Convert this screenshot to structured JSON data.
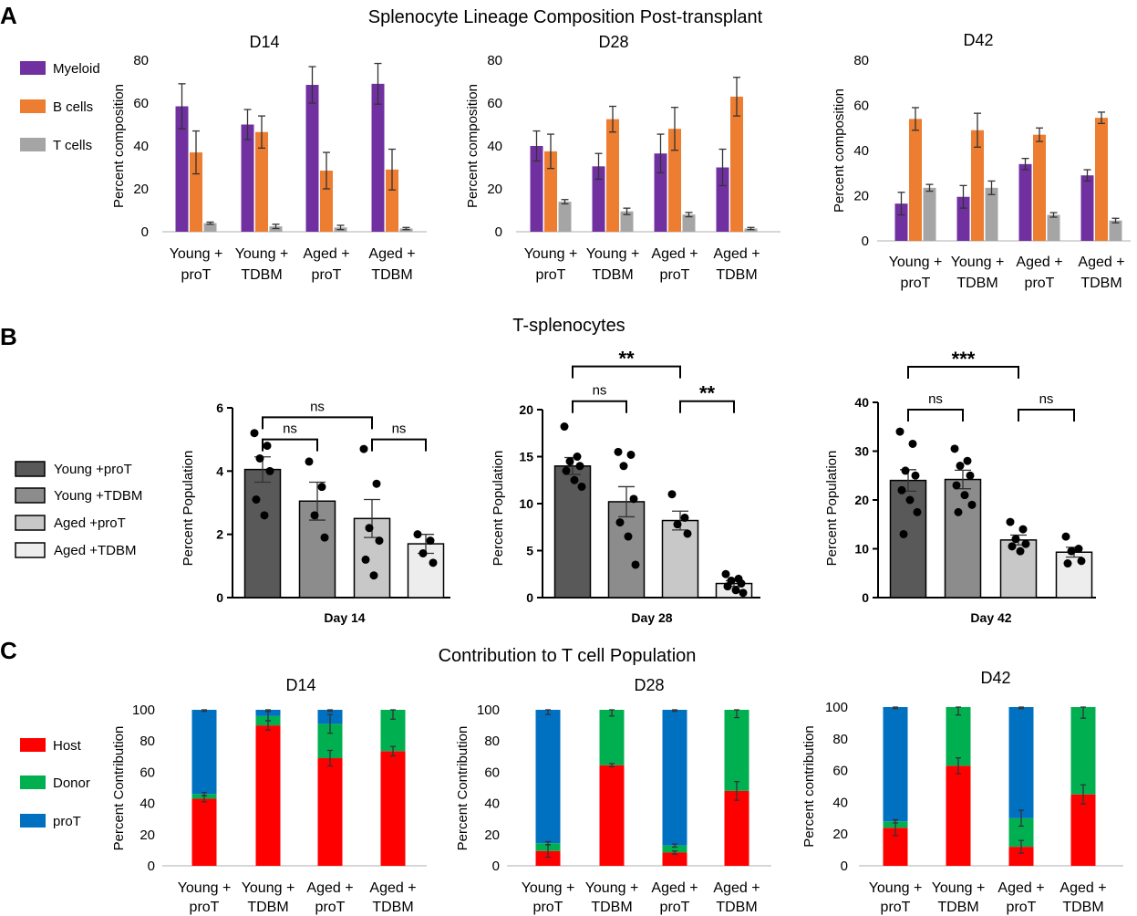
{
  "panels": [
    {
      "letter": "A",
      "title": "Splenocyte Lineage Composition Post-transplant"
    },
    {
      "letter": "B",
      "title": "T-splenocytes"
    },
    {
      "letter": "C",
      "title": "Contribution to T cell Population"
    }
  ],
  "legend_a": [
    {
      "label": "Myeloid",
      "color": "#7030A0"
    },
    {
      "label": "B cells",
      "color": "#ED7D31"
    },
    {
      "label": "T cells",
      "color": "#A5A5A5"
    }
  ],
  "legend_b": [
    {
      "label": "Young +proT",
      "color": "#595959"
    },
    {
      "label": "Young +TDBM",
      "color": "#8C8C8C"
    },
    {
      "label": "Aged +proT",
      "color": "#C8C8C8"
    },
    {
      "label": "Aged +TDBM",
      "color": "#EDEDED"
    }
  ],
  "legend_c": [
    {
      "label": "Host",
      "color": "#FF0000"
    },
    {
      "label": "Donor",
      "color": "#00B050"
    },
    {
      "label": "proT",
      "color": "#0070C0"
    }
  ],
  "chart_data": [
    {
      "id": "A1",
      "type": "bar",
      "title": "D14",
      "ylabel": "Percent composition",
      "ylim": [
        0,
        80
      ],
      "yticks": [
        0,
        20,
        40,
        60,
        80
      ],
      "categories": [
        [
          "Young +",
          "proT"
        ],
        [
          "Young +",
          "TDBM"
        ],
        [
          "Aged +",
          "proT"
        ],
        [
          "Aged +",
          "TDBM"
        ]
      ],
      "series": [
        {
          "name": "Myeloid",
          "values": [
            58.5,
            50,
            68.5,
            69
          ],
          "errors": [
            10.5,
            7,
            8.5,
            9.5
          ]
        },
        {
          "name": "B cells",
          "values": [
            37,
            46.5,
            28.5,
            29
          ],
          "errors": [
            10,
            7.5,
            8.5,
            9.5
          ]
        },
        {
          "name": "T cells",
          "values": [
            4,
            2.5,
            2,
            1.5
          ],
          "errors": [
            0.5,
            1,
            1,
            0.5
          ]
        }
      ]
    },
    {
      "id": "A2",
      "type": "bar",
      "title": "D28",
      "ylabel": "Percent composition",
      "ylim": [
        0,
        80
      ],
      "yticks": [
        0,
        20,
        40,
        60,
        80
      ],
      "categories": [
        [
          "Young +",
          "proT"
        ],
        [
          "Young +",
          "TDBM"
        ],
        [
          "Aged +",
          "proT"
        ],
        [
          "Aged +",
          "TDBM"
        ]
      ],
      "series": [
        {
          "name": "Myeloid",
          "values": [
            40,
            30.5,
            36.5,
            30
          ],
          "errors": [
            7,
            6,
            9,
            8.5
          ]
        },
        {
          "name": "B cells",
          "values": [
            37.5,
            52.5,
            48,
            63
          ],
          "errors": [
            8,
            6,
            10,
            9
          ]
        },
        {
          "name": "T cells",
          "values": [
            14,
            9.5,
            8,
            1.5
          ],
          "errors": [
            1,
            1.5,
            1,
            0.5
          ]
        }
      ]
    },
    {
      "id": "A3",
      "type": "bar",
      "title": "D42",
      "ylabel": "Percent composition",
      "ylim": [
        0,
        80
      ],
      "yticks": [
        0,
        20,
        40,
        60,
        80
      ],
      "categories": [
        [
          "Young +",
          "proT"
        ],
        [
          "Young +",
          "TDBM"
        ],
        [
          "Aged +",
          "proT"
        ],
        [
          "Aged +",
          "TDBM"
        ]
      ],
      "series": [
        {
          "name": "Myeloid",
          "values": [
            16.5,
            19.5,
            34,
            29
          ],
          "errors": [
            5,
            5,
            2.5,
            2.5
          ]
        },
        {
          "name": "B cells",
          "values": [
            54,
            49,
            47,
            54.5
          ],
          "errors": [
            5,
            7.5,
            3,
            2.5
          ]
        },
        {
          "name": "T cells",
          "values": [
            23.5,
            23.5,
            11.5,
            9
          ],
          "errors": [
            1.5,
            3,
            1,
            1
          ]
        }
      ]
    },
    {
      "id": "B1",
      "type": "bar",
      "title": "",
      "xlabel": "Day 14",
      "ylabel": "Percent Population",
      "ylim": [
        0,
        6
      ],
      "yticks": [
        0,
        2,
        4,
        6
      ],
      "categories": [
        "Young +proT",
        "Young +TDBM",
        "Aged +proT",
        "Aged +TDBM"
      ],
      "values": [
        4.05,
        3.05,
        2.5,
        1.7
      ],
      "errors": [
        0.4,
        0.6,
        0.6,
        0.3
      ],
      "points": [
        [
          5.2,
          4.8,
          4.4,
          4.0,
          3.1,
          2.6
        ],
        [
          4.3,
          3.5,
          2.6,
          1.9
        ],
        [
          4.7,
          3.6,
          2.2,
          1.8,
          1.2,
          0.7
        ],
        [
          2.0,
          1.8,
          1.4,
          1.1
        ]
      ],
      "brackets": [
        {
          "from": 0,
          "to": 2,
          "label": "ns",
          "y": 5.7
        },
        {
          "from": 0,
          "to": 1,
          "label": "ns",
          "y": 5.0
        },
        {
          "from": 2,
          "to": 3,
          "label": "ns",
          "y": 5.0
        }
      ]
    },
    {
      "id": "B2",
      "type": "bar",
      "title": "",
      "xlabel": "Day 28",
      "ylabel": "Percent Population",
      "ylim": [
        0,
        20
      ],
      "yticks": [
        0,
        5,
        10,
        15,
        20
      ],
      "categories": [
        "Young +proT",
        "Young +TDBM",
        "Aged +proT",
        "Aged +TDBM"
      ],
      "values": [
        14,
        10.2,
        8.2,
        1.5
      ],
      "errors": [
        0.9,
        1.6,
        1.0,
        0.3
      ],
      "points": [
        [
          18.2,
          15.0,
          14.5,
          14.0,
          13.5,
          12.5,
          11.8
        ],
        [
          15.5,
          15.2,
          14.0,
          10.5,
          8.0,
          6.5,
          3.5
        ],
        [
          11.0,
          8.5,
          7.8,
          6.8
        ],
        [
          2.5,
          2.0,
          1.8,
          1.5,
          1.2,
          0.8,
          0.5
        ]
      ],
      "brackets": [
        {
          "from": 0,
          "to": 2,
          "label": "**",
          "y": 24.6
        },
        {
          "from": 0,
          "to": 1,
          "label": "ns",
          "y": 20.9
        },
        {
          "from": 2,
          "to": 3,
          "label": "**",
          "y": 20.9
        }
      ]
    },
    {
      "id": "B3",
      "type": "bar",
      "title": "",
      "xlabel": "Day 42",
      "ylabel": "Percent Population",
      "ylim": [
        0,
        40
      ],
      "yticks": [
        0,
        10,
        20,
        30,
        40
      ],
      "categories": [
        "Young +proT",
        "Young +TDBM",
        "Aged +proT",
        "Aged +TDBM"
      ],
      "values": [
        24,
        24.2,
        11.8,
        9.3
      ],
      "errors": [
        2.2,
        1.9,
        1.0,
        1.0
      ],
      "points": [
        [
          34.0,
          31.5,
          26.0,
          25.0,
          22.0,
          20.0,
          17.5,
          13.0
        ],
        [
          30.5,
          28.0,
          27.0,
          25.0,
          23.0,
          21.0,
          19.0,
          17.5
        ],
        [
          15.5,
          14.0,
          12.0,
          11.0,
          10.5,
          9.5
        ],
        [
          12.5,
          10.0,
          9.5,
          7.5,
          7.0
        ]
      ],
      "brackets": [
        {
          "from": 0,
          "to": 2,
          "label": "***",
          "y": 47.3
        },
        {
          "from": 0,
          "to": 1,
          "label": "ns",
          "y": 38.5
        },
        {
          "from": 2,
          "to": 3,
          "label": "ns",
          "y": 38.5
        }
      ]
    },
    {
      "id": "C1",
      "type": "bar",
      "stacked": true,
      "title": "D14",
      "ylabel": "Percent Contribution",
      "ylim": [
        0,
        100
      ],
      "yticks": [
        0,
        20,
        40,
        60,
        80,
        100
      ],
      "categories": [
        [
          "Young +",
          "proT"
        ],
        [
          "Young +",
          "TDBM"
        ],
        [
          "Aged +",
          "proT"
        ],
        [
          "Aged +",
          "TDBM"
        ]
      ],
      "series": [
        {
          "name": "Host",
          "values": [
            43,
            90,
            69,
            73.5
          ],
          "errors": [
            2,
            3,
            5,
            3
          ]
        },
        {
          "name": "Donor",
          "values": [
            3,
            6,
            22,
            26.5
          ],
          "errors": [
            1,
            3,
            6,
            6
          ]
        },
        {
          "name": "proT",
          "values": [
            54,
            4,
            9,
            0
          ],
          "errors": [
            1,
            1,
            1,
            0
          ]
        }
      ]
    },
    {
      "id": "C2",
      "type": "bar",
      "stacked": true,
      "title": "D28",
      "ylabel": "Percent Contribution",
      "ylim": [
        0,
        100
      ],
      "yticks": [
        0,
        20,
        40,
        60,
        80,
        100
      ],
      "categories": [
        [
          "Young +",
          "proT"
        ],
        [
          "Young +",
          "TDBM"
        ],
        [
          "Aged +",
          "proT"
        ],
        [
          "Aged +",
          "TDBM"
        ]
      ],
      "series": [
        {
          "name": "Host",
          "values": [
            9.5,
            64.5,
            8.5,
            48
          ],
          "errors": [
            4,
            1,
            1,
            6
          ]
        },
        {
          "name": "Donor",
          "values": [
            5,
            35.5,
            4.5,
            52
          ],
          "errors": [
            1,
            4,
            1,
            5
          ]
        },
        {
          "name": "proT",
          "values": [
            85.5,
            0,
            87,
            0
          ],
          "errors": [
            3,
            0,
            1,
            0
          ]
        }
      ]
    },
    {
      "id": "C3",
      "type": "bar",
      "stacked": true,
      "title": "D42",
      "ylabel": "Percent contribution",
      "ylim": [
        0,
        100
      ],
      "yticks": [
        0,
        20,
        40,
        60,
        80,
        100
      ],
      "categories": [
        [
          "Young +",
          "proT"
        ],
        [
          "Young +",
          "TDBM"
        ],
        [
          "Aged +",
          "proT"
        ],
        [
          "Aged +",
          "TDBM"
        ]
      ],
      "series": [
        {
          "name": "Host",
          "values": [
            24,
            63,
            12,
            45
          ],
          "errors": [
            5,
            5,
            4,
            6
          ]
        },
        {
          "name": "Donor",
          "values": [
            4,
            37,
            18,
            55
          ],
          "errors": [
            1,
            5,
            5,
            7
          ]
        },
        {
          "name": "proT",
          "values": [
            72,
            0,
            70,
            0
          ],
          "errors": [
            1,
            0,
            1,
            0
          ]
        }
      ]
    }
  ]
}
